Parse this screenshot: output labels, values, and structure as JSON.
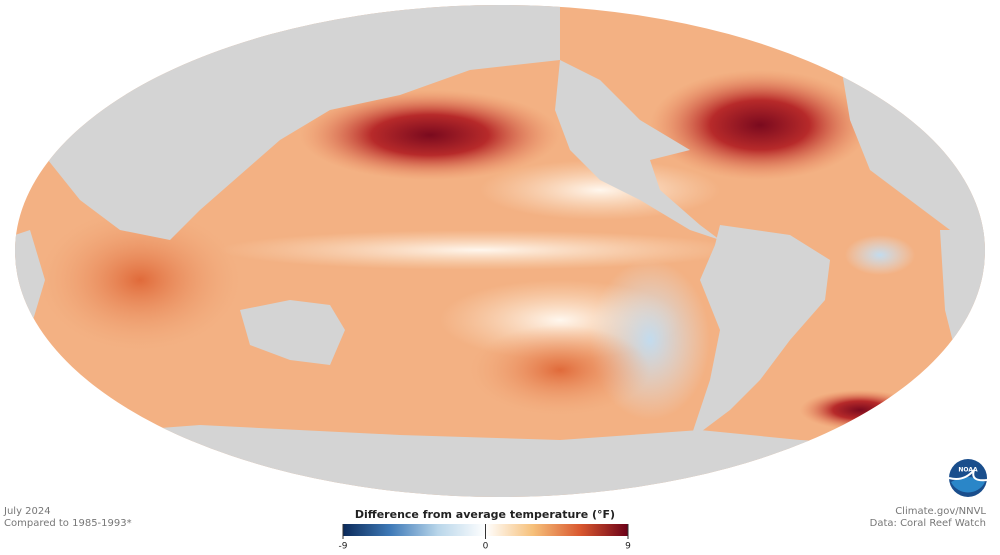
{
  "map": {
    "logo": "NOAA",
    "date": "July 2024",
    "baseline": "Compared to 1985-1993*",
    "credit": "Climate.gov/NNVL",
    "source": "Data: Coral Reef Watch",
    "colorbar": {
      "title": "Difference from average temperature (°F)",
      "min": -9,
      "max": 9,
      "ticks": [
        -9,
        0,
        9
      ],
      "colors": [
        "#0b2a5a",
        "#3f7ab8",
        "#b9d6ea",
        "#ffffff",
        "#f6c07a",
        "#d9582f",
        "#6b0018"
      ]
    }
  }
}
